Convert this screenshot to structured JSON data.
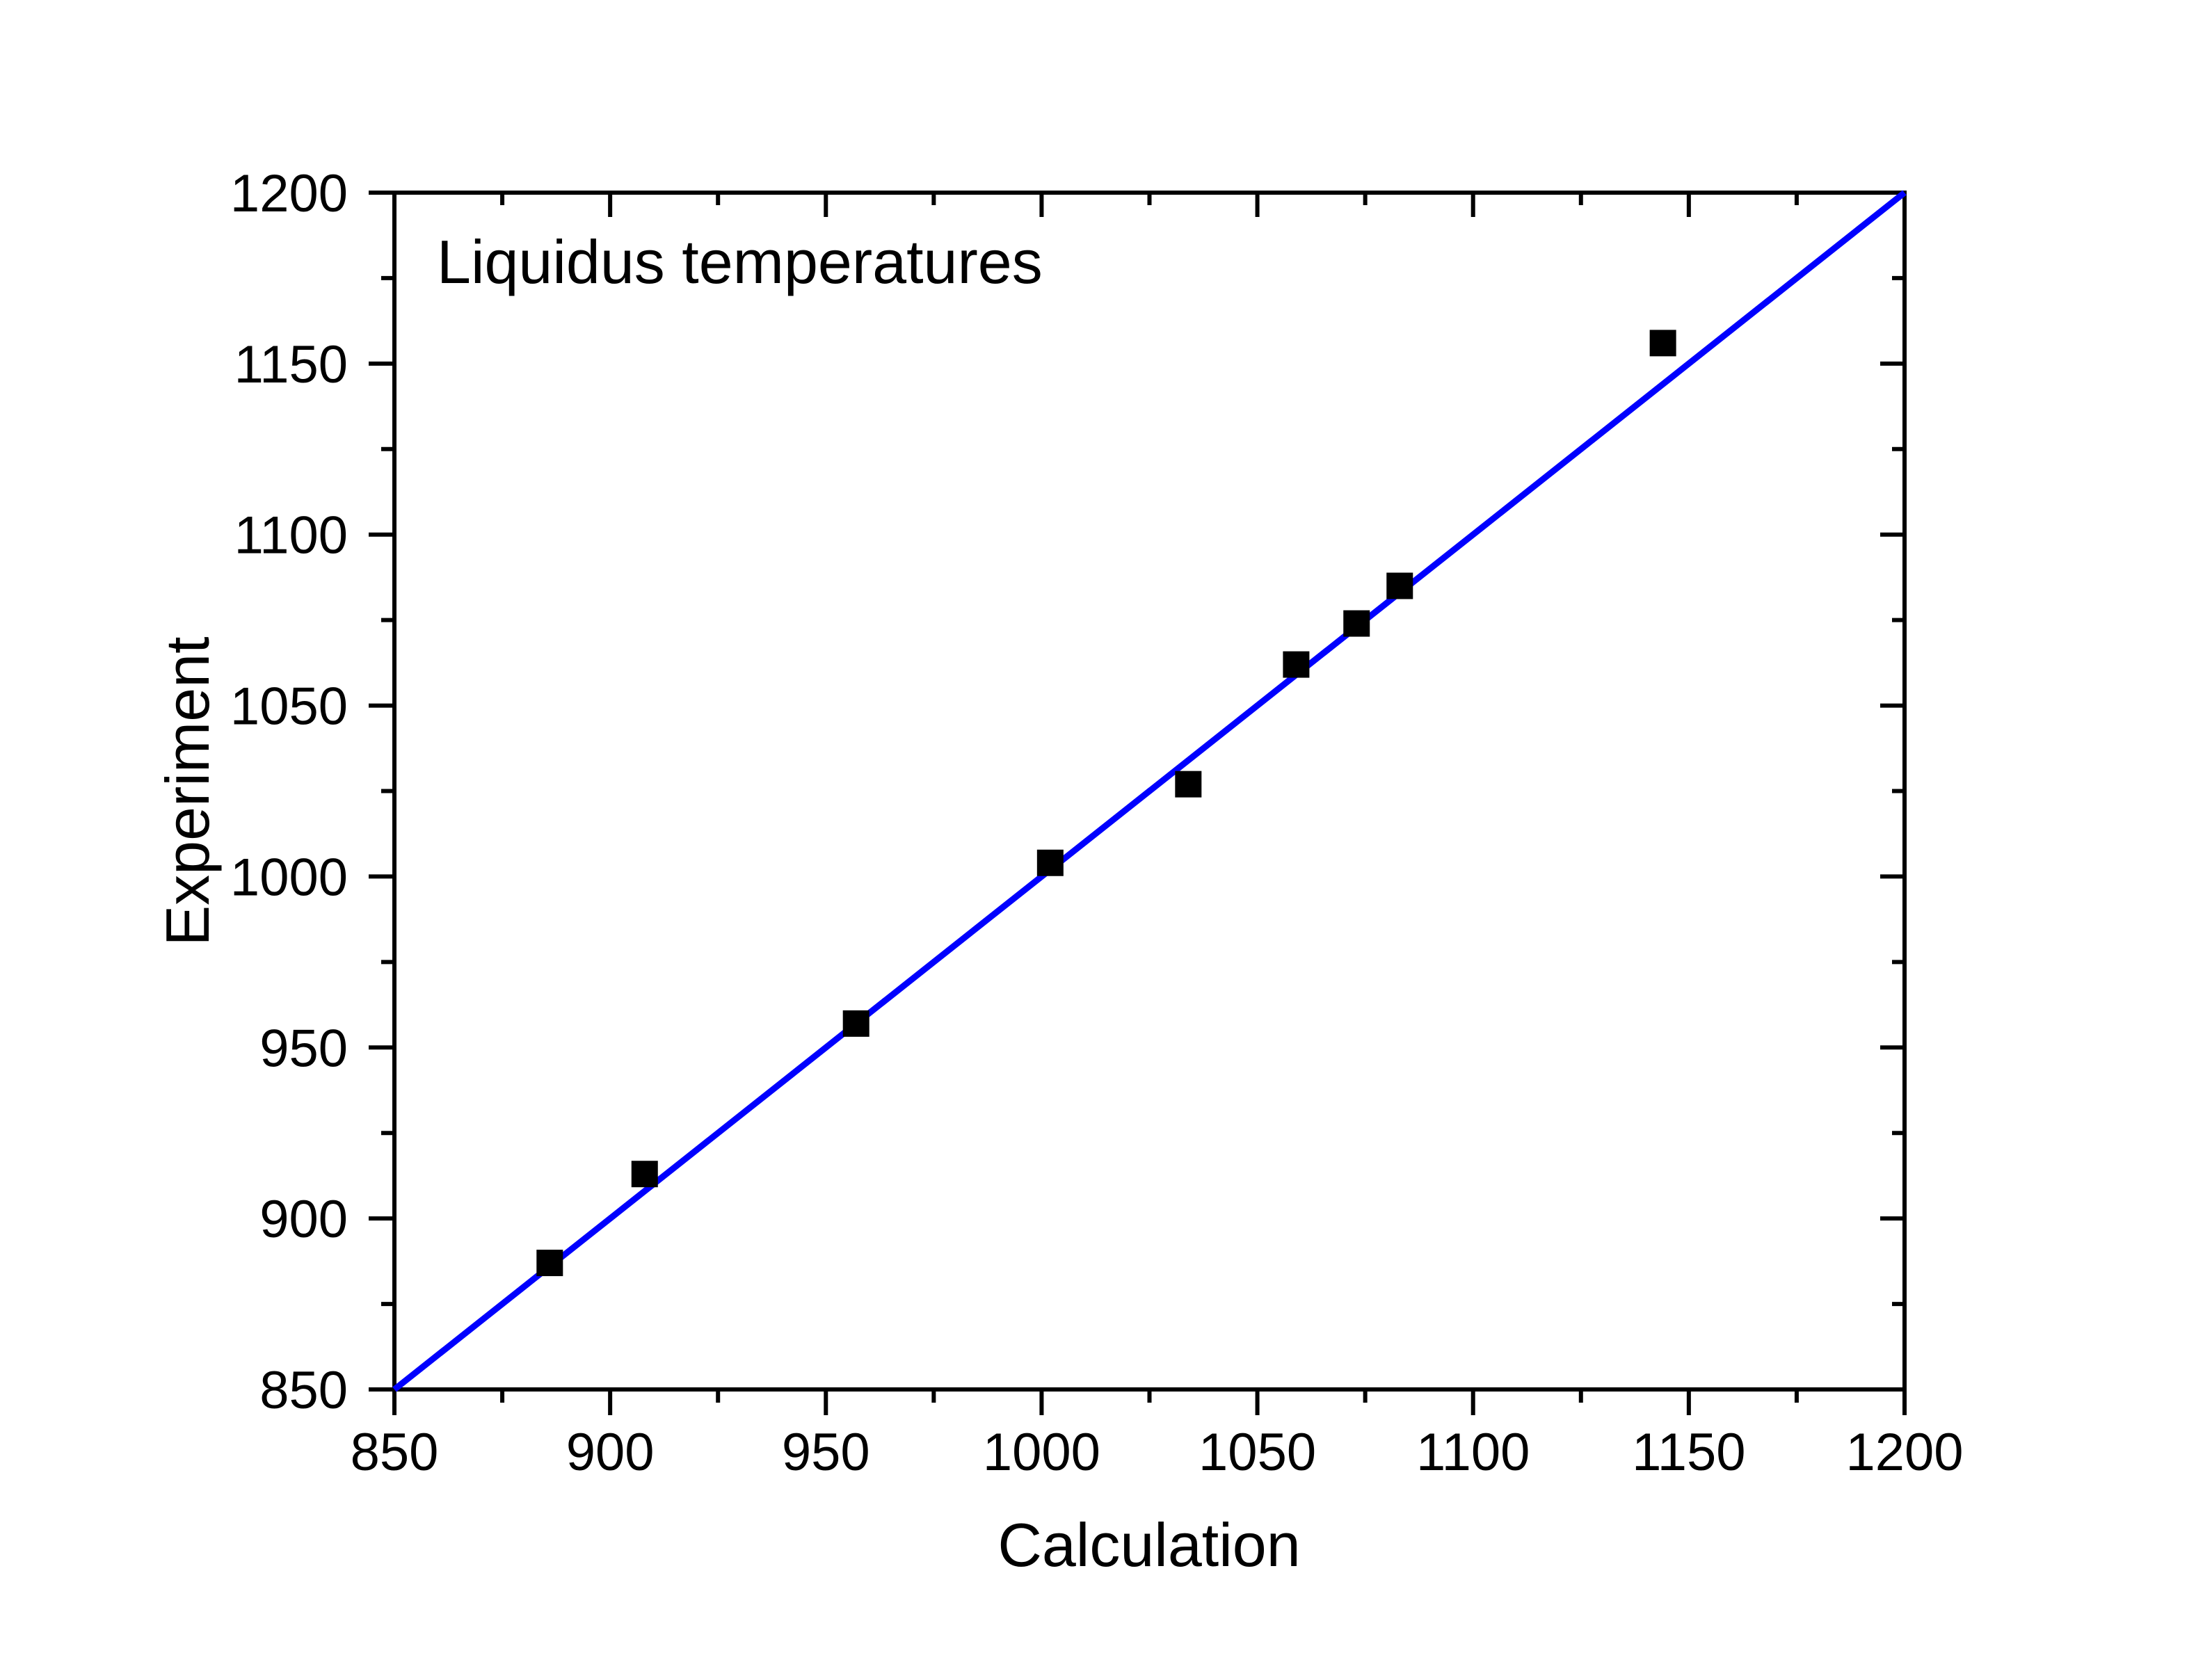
{
  "chart_data": {
    "type": "scatter",
    "title": "Liquidus temperatures",
    "xlabel": "Calculation",
    "ylabel": "Experiment",
    "xlim": [
      850,
      1200
    ],
    "ylim": [
      850,
      1200
    ],
    "x_major_ticks": [
      850,
      900,
      950,
      1000,
      1050,
      1100,
      1150,
      1200
    ],
    "x_minor_ticks": [
      875,
      925,
      975,
      1025,
      1075,
      1125,
      1175
    ],
    "y_major_ticks": [
      850,
      900,
      950,
      1000,
      1050,
      1100,
      1150,
      1200
    ],
    "y_minor_ticks": [
      875,
      925,
      975,
      1025,
      1075,
      1125,
      1175
    ],
    "grid": "off",
    "legend": "none",
    "marker_shape": "square",
    "series": [
      {
        "name": "data-points",
        "points": [
          [
            886,
            887
          ],
          [
            908,
            913
          ],
          [
            957,
            957
          ],
          [
            1002,
            1004
          ],
          [
            1034,
            1027
          ],
          [
            1059,
            1062
          ],
          [
            1073,
            1074
          ],
          [
            1083,
            1085
          ],
          [
            1144,
            1156
          ]
        ]
      }
    ],
    "reference_line": {
      "x1": 850,
      "y1": 850,
      "x2": 1200,
      "y2": 1200
    },
    "colors": {
      "line": "#0000fe",
      "marker": "#000000",
      "axis": "#000000",
      "background": "#ffffff"
    }
  }
}
